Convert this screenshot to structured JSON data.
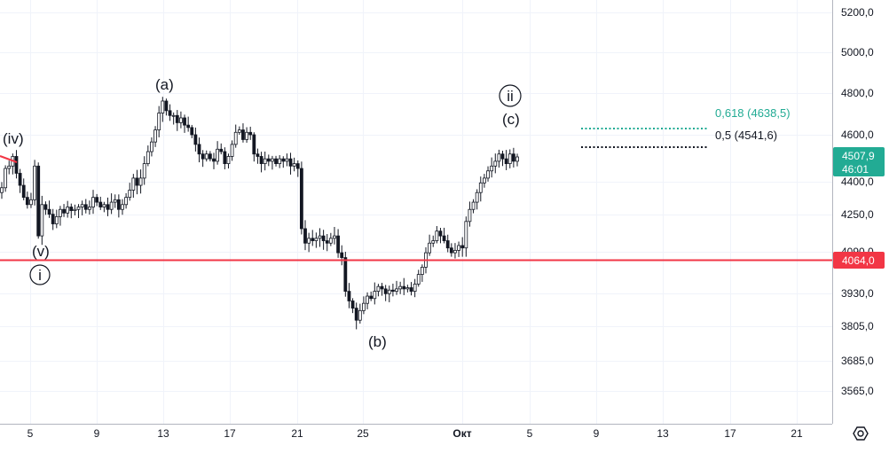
{
  "chart_data": {
    "type": "candlestick",
    "y_ticks": [
      "5200,0",
      "5000,0",
      "4800,0",
      "4600,0",
      "4400,0",
      "4250,0",
      "4090,0",
      "3930,0",
      "3805,0",
      "3685,0",
      "3565,0"
    ],
    "x_ticks": [
      "5",
      "9",
      "13",
      "17",
      "21",
      "25",
      "Окт",
      "5",
      "9",
      "13",
      "17",
      "21"
    ],
    "price_line": {
      "value": 4064.0,
      "label": "4064,0",
      "color": "#f23645"
    },
    "last_price": {
      "value": 4507.9,
      "label": "4507,9",
      "countdown": "46:01",
      "color": "#22ab94"
    },
    "fib_levels": [
      {
        "label": "0,618 (4638,5)",
        "value": 4638.5,
        "color": "#22ab94"
      },
      {
        "label": "0,5 (4541,6)",
        "value": 4541.6,
        "color": "#131722"
      }
    ],
    "wave_labels": [
      "(iv)",
      "(v)",
      "i",
      "(a)",
      "(b)",
      "ii",
      "(c)"
    ],
    "close_series": [
      4380,
      4460,
      4470,
      4510,
      4440,
      4390,
      4340,
      4310,
      4330,
      4470,
      4180,
      4310,
      4290,
      4270,
      4230,
      4260,
      4290,
      4275,
      4300,
      4285,
      4290,
      4300,
      4310,
      4290,
      4300,
      4340,
      4320,
      4300,
      4310,
      4290,
      4320,
      4330,
      4290,
      4310,
      4340,
      4370,
      4420,
      4390,
      4420,
      4480,
      4530,
      4570,
      4620,
      4690,
      4740,
      4700,
      4680,
      4680,
      4650,
      4670,
      4640,
      4630,
      4600,
      4560,
      4520,
      4500,
      4520,
      4500,
      4490,
      4540,
      4530,
      4480,
      4510,
      4560,
      4610,
      4620,
      4580,
      4610,
      4600,
      4520,
      4510,
      4480,
      4500,
      4490,
      4500,
      4480,
      4500,
      4490,
      4500,
      4470,
      4480,
      4460,
      4210,
      4150,
      4170,
      4160,
      4170,
      4180,
      4160,
      4150,
      4170,
      4180,
      4110,
      4090,
      3950,
      3910,
      3880,
      3830,
      3870,
      3900,
      3930,
      3920,
      3950,
      3970,
      3960,
      3940,
      3955,
      3950,
      3960,
      3970,
      3960,
      3965,
      3950,
      3980,
      4020,
      4050,
      4110,
      4150,
      4160,
      4200,
      4180,
      4160,
      4130,
      4110,
      4120,
      4140,
      4130,
      4240,
      4290,
      4320,
      4360,
      4400,
      4420,
      4450,
      4470,
      4490,
      4520,
      4500,
      4480,
      4520,
      4490,
      4507.9
    ]
  }
}
